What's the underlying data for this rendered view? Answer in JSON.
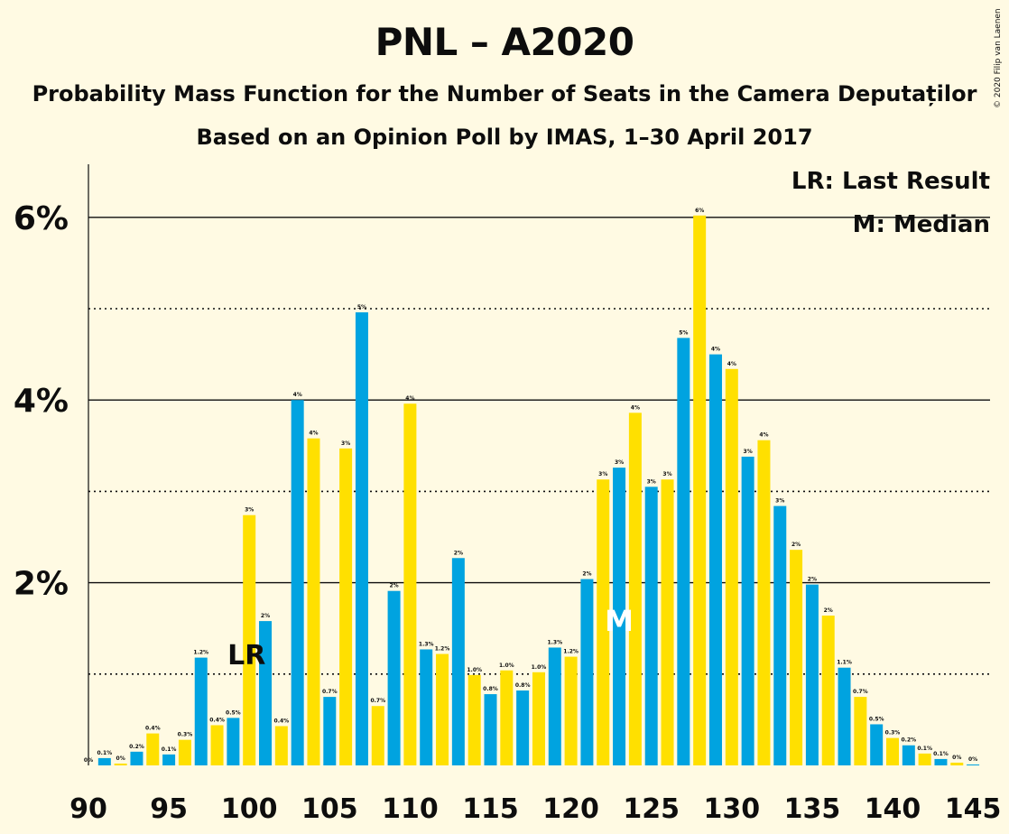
{
  "title": "PNL – A2020",
  "subtitle1": "Probability Mass Function for the Number of Seats in the Camera Deputaților",
  "subtitle2": "Based on an Opinion Poll by IMAS, 1–30 April 2017",
  "copyright": "© 2020 Filip van Laenen",
  "legend": {
    "lr": "LR: Last Result",
    "m": "M: Median"
  },
  "markers": {
    "lr_label": "LR",
    "lr_seat": 100,
    "median_label": "M",
    "median_seat": 123
  },
  "colors": {
    "background": "#fffae3",
    "blue": "#00a3e0",
    "yellow": "#ffe000"
  },
  "chart_data": {
    "type": "bar",
    "xlabel": "",
    "ylabel": "",
    "xlim": [
      90,
      145
    ],
    "ylim": [
      0,
      6.6
    ],
    "yticks": [
      {
        "value": 2,
        "label": "2%"
      },
      {
        "value": 4,
        "label": "4%"
      },
      {
        "value": 6,
        "label": "6%"
      }
    ],
    "xticks": [
      90,
      95,
      100,
      105,
      110,
      115,
      120,
      125,
      130,
      135,
      140,
      145
    ],
    "grid": {
      "solid": [
        2,
        4,
        6
      ],
      "dotted": [
        1,
        3,
        5
      ]
    },
    "x": [
      90,
      91,
      92,
      93,
      94,
      95,
      96,
      97,
      98,
      99,
      100,
      101,
      102,
      103,
      104,
      105,
      106,
      107,
      108,
      109,
      110,
      111,
      112,
      113,
      114,
      115,
      116,
      117,
      118,
      119,
      120,
      121,
      122,
      123,
      124,
      125,
      126,
      127,
      128,
      129,
      130,
      131,
      132,
      133,
      134,
      135,
      136,
      137,
      138,
      139,
      140,
      141,
      142,
      143,
      144,
      145
    ],
    "values": [
      0.0,
      0.08,
      0.02,
      0.15,
      0.35,
      0.12,
      0.28,
      1.18,
      0.44,
      0.52,
      2.74,
      1.58,
      0.43,
      4.0,
      3.58,
      0.75,
      3.47,
      4.96,
      0.65,
      1.91,
      3.96,
      1.27,
      1.22,
      2.27,
      0.99,
      0.78,
      1.04,
      0.82,
      1.02,
      1.29,
      1.19,
      2.04,
      3.13,
      3.26,
      3.86,
      3.05,
      3.13,
      4.68,
      6.02,
      4.5,
      4.34,
      3.38,
      3.56,
      2.84,
      2.36,
      1.98,
      1.64,
      1.07,
      0.75,
      0.45,
      0.3,
      0.22,
      0.13,
      0.07,
      0.03,
      0.01
    ],
    "data_labels": [
      "0%",
      "0.1%",
      "0%",
      "0.2%",
      "0.4%",
      "0.1%",
      "0.3%",
      "1.2%",
      "0.4%",
      "0.5%",
      "3%",
      "2%",
      "0.4%",
      "4%",
      "4%",
      "0.7%",
      "3%",
      "5%",
      "0.7%",
      "2%",
      "4%",
      "1.3%",
      "1.2%",
      "2%",
      "1.0%",
      "0.8%",
      "1.0%",
      "0.8%",
      "1.0%",
      "1.3%",
      "1.2%",
      "2%",
      "3%",
      "3%",
      "4%",
      "3%",
      "3%",
      "5%",
      "6%",
      "4%",
      "4%",
      "3%",
      "4%",
      "3%",
      "2%",
      "2%",
      "2%",
      "1.1%",
      "0.7%",
      "0.5%",
      "0.3%",
      "0.2%",
      "0.1%",
      "0.1%",
      "0%",
      "0%"
    ]
  }
}
